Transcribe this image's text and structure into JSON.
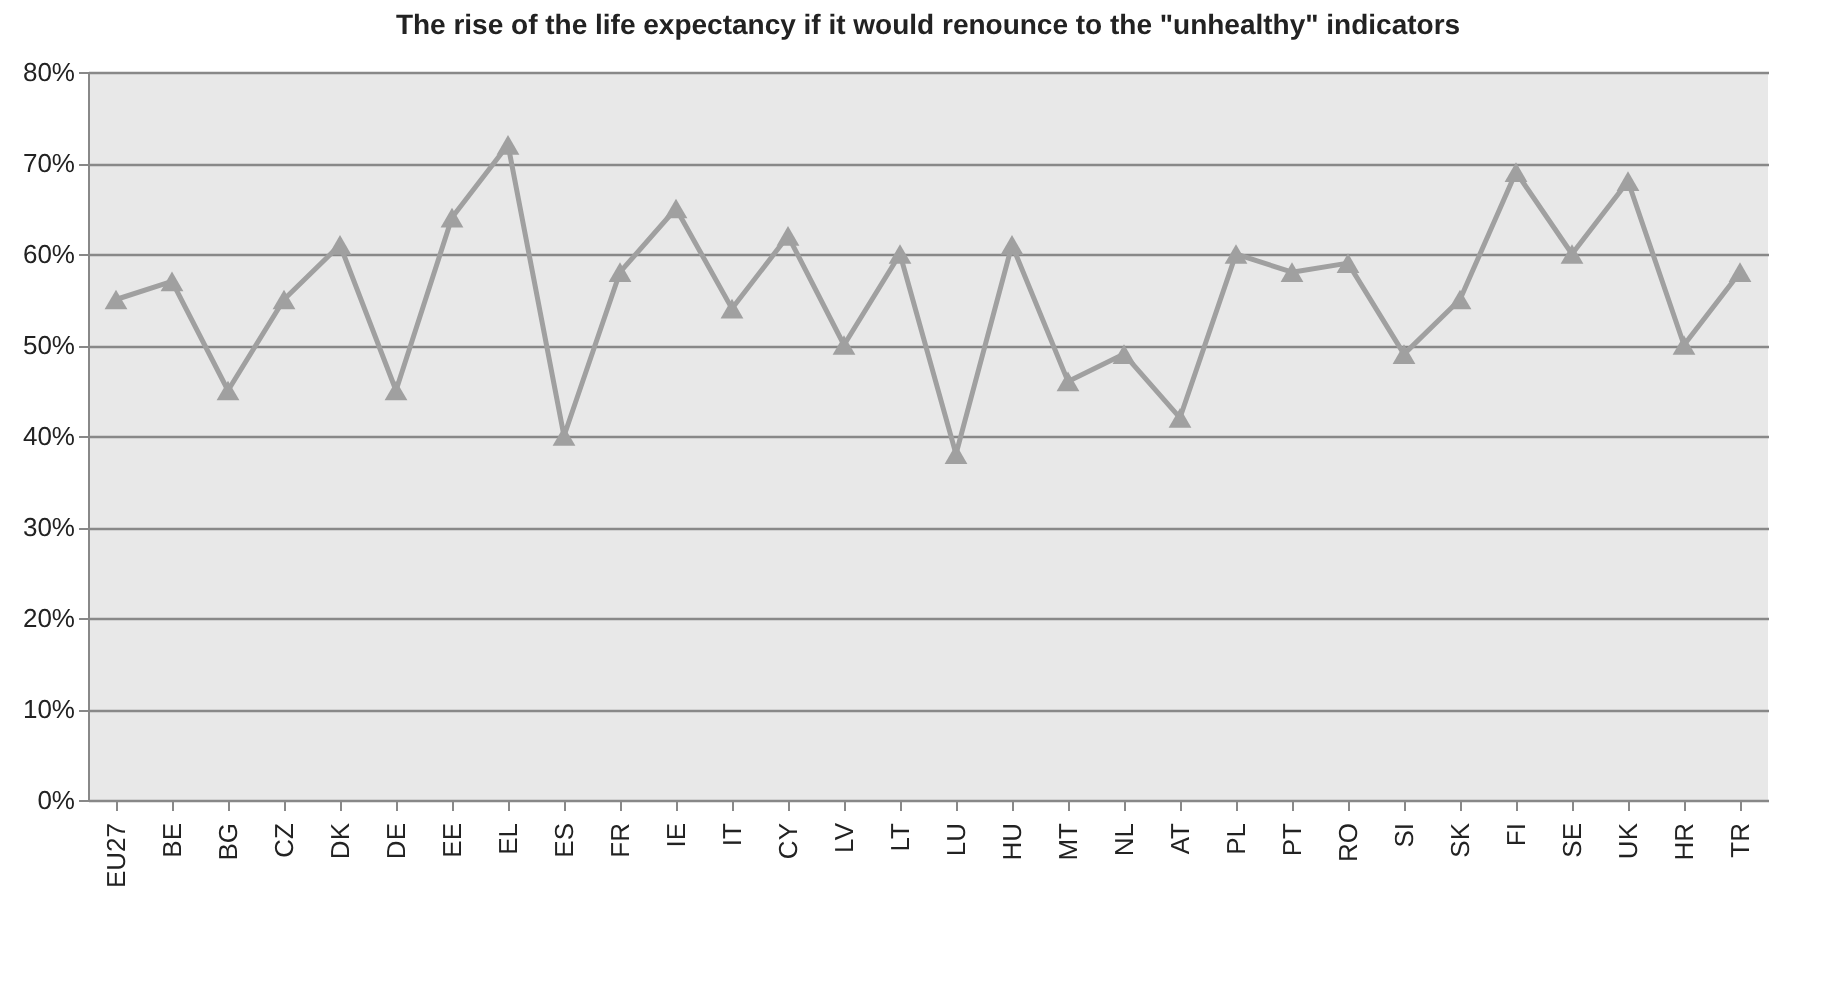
{
  "chart_data": {
    "type": "line",
    "title": "The rise of the life expectancy if it would renounce to the \"unhealthy\" indicators",
    "categories": [
      "EU27",
      "BE",
      "BG",
      "CZ",
      "DK",
      "DE",
      "EE",
      "EL",
      "ES",
      "FR",
      "IE",
      "IT",
      "CY",
      "LV",
      "LT",
      "LU",
      "HU",
      "MT",
      "NL",
      "AT",
      "PL",
      "PT",
      "RO",
      "SI",
      "SK",
      "FI",
      "SE",
      "UK",
      "HR",
      "TR"
    ],
    "series": [
      {
        "color": "#a0a0a0",
        "values": [
          55,
          57,
          45,
          55,
          61,
          45,
          64,
          72,
          40,
          58,
          65,
          54,
          62,
          50,
          60,
          38,
          61,
          46,
          49,
          42,
          60,
          58,
          59,
          49,
          55,
          69,
          60,
          68,
          50,
          58
        ]
      }
    ],
    "ylim": [
      0,
      80
    ],
    "yticks": [
      {
        "value": 0,
        "label": "0%"
      },
      {
        "value": 10,
        "label": "10%"
      },
      {
        "value": 20,
        "label": "20%"
      },
      {
        "value": 30,
        "label": "30%"
      },
      {
        "value": 40,
        "label": "40%"
      },
      {
        "value": 50,
        "label": "50%"
      },
      {
        "value": 60,
        "label": "60%"
      },
      {
        "value": 70,
        "label": "70%"
      },
      {
        "value": 80,
        "label": "80%"
      }
    ],
    "grid": "y",
    "marker": "triangle",
    "legend": false
  }
}
